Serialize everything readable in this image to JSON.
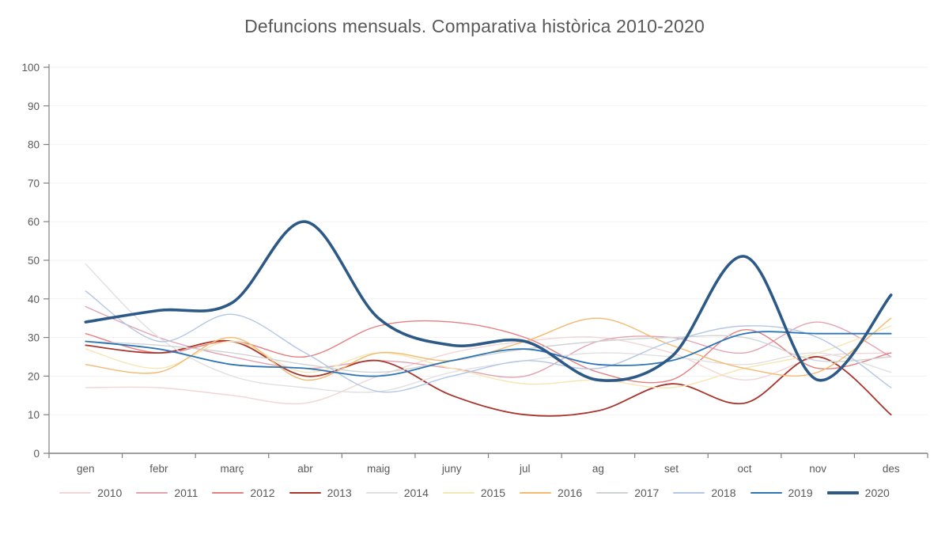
{
  "chart_data": {
    "type": "line",
    "title": "Defuncions mensuals. Comparativa històrica 2010-2020",
    "categories": [
      "gen",
      "febr",
      "març",
      "abr",
      "maig",
      "juny",
      "jul",
      "ag",
      "set",
      "oct",
      "nov",
      "des"
    ],
    "y_ticks": [
      0,
      10,
      20,
      30,
      40,
      50,
      60,
      70,
      80,
      90,
      100
    ],
    "ylim": [
      0,
      100
    ],
    "grid": "horizontal",
    "legend_position": "bottom",
    "text_color": "#595959",
    "axis_color": "#808080",
    "grid_color": "#f2f2f2",
    "series": [
      {
        "name": "2010",
        "color": "#f2d5d6",
        "width": 1.4,
        "values": [
          17,
          17,
          15,
          13,
          20,
          26,
          29,
          30,
          26,
          19,
          25,
          26
        ]
      },
      {
        "name": "2011",
        "color": "#e2a2b0",
        "width": 1.4,
        "values": [
          38,
          30,
          25,
          22,
          24,
          22,
          20,
          29,
          30,
          26,
          34,
          25
        ]
      },
      {
        "name": "2012",
        "color": "#e57f7f",
        "width": 1.4,
        "values": [
          31,
          26,
          29,
          25,
          33,
          34,
          30,
          21,
          19,
          32,
          22,
          26
        ]
      },
      {
        "name": "2013",
        "color": "#a8352c",
        "width": 1.8,
        "values": [
          28,
          26,
          29,
          20,
          24,
          15,
          10,
          11,
          18,
          13,
          25,
          10
        ]
      },
      {
        "name": "2014",
        "color": "#e0e0e0",
        "width": 1.4,
        "values": [
          49,
          30,
          20,
          17,
          16,
          21,
          24,
          26,
          25,
          23,
          26,
          21
        ]
      },
      {
        "name": "2015",
        "color": "#f5e6b2",
        "width": 1.4,
        "values": [
          27,
          22,
          29,
          21,
          26,
          22,
          18,
          19,
          17,
          22,
          26,
          33
        ]
      },
      {
        "name": "2016",
        "color": "#f4b96e",
        "width": 1.4,
        "values": [
          23,
          21,
          30,
          19,
          26,
          24,
          29,
          35,
          28,
          22,
          21,
          35
        ]
      },
      {
        "name": "2017",
        "color": "#d0d3d4",
        "width": 1.4,
        "values": [
          29,
          28,
          26,
          23,
          21,
          24,
          27,
          29,
          30,
          30,
          24,
          25
        ]
      },
      {
        "name": "2018",
        "color": "#b3c6e7",
        "width": 1.4,
        "values": [
          42,
          29,
          36,
          26,
          16,
          20,
          24,
          22,
          29,
          33,
          30,
          17
        ]
      },
      {
        "name": "2019",
        "color": "#2e75b6",
        "width": 1.8,
        "values": [
          29,
          27,
          23,
          22,
          20,
          24,
          27,
          23,
          24,
          31,
          31,
          31
        ]
      },
      {
        "name": "2020",
        "color": "#2d5986",
        "width": 3.6,
        "values": [
          34,
          37,
          39,
          60,
          35,
          28,
          29,
          19,
          25,
          51,
          19,
          41
        ]
      }
    ]
  }
}
